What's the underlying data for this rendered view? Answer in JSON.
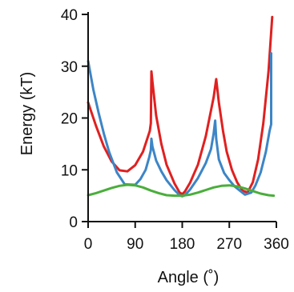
{
  "chart_data": {
    "type": "line",
    "xlabel": "Angle (˚)",
    "ylabel": "Energy (kT)",
    "xlim": [
      0,
      360
    ],
    "ylim": [
      0,
      40
    ],
    "xticks": [
      0,
      90,
      180,
      270,
      360
    ],
    "yticks": [
      0,
      10,
      20,
      30,
      40
    ],
    "grid": false,
    "series": [
      {
        "color": "#e02020",
        "points": [
          [
            0,
            23
          ],
          [
            15,
            18.5
          ],
          [
            30,
            14.5
          ],
          [
            45,
            11.6
          ],
          [
            60,
            9.9
          ],
          [
            75,
            9.7
          ],
          [
            90,
            10.9
          ],
          [
            105,
            13.5
          ],
          [
            118,
            17.5
          ],
          [
            120,
            19
          ],
          [
            121,
            29
          ],
          [
            123,
            27
          ],
          [
            130,
            20.5
          ],
          [
            140,
            15
          ],
          [
            150,
            11
          ],
          [
            165,
            7.4
          ],
          [
            175,
            5.6
          ],
          [
            180,
            5.3
          ],
          [
            185,
            5.8
          ],
          [
            195,
            7.5
          ],
          [
            210,
            11
          ],
          [
            225,
            16.5
          ],
          [
            240,
            24
          ],
          [
            245,
            27.5
          ],
          [
            250,
            23
          ],
          [
            258,
            17.5
          ],
          [
            265,
            13.5
          ],
          [
            275,
            10
          ],
          [
            285,
            7.6
          ],
          [
            295,
            6
          ],
          [
            305,
            5.6
          ],
          [
            315,
            7.6
          ],
          [
            325,
            12
          ],
          [
            335,
            19
          ],
          [
            345,
            29
          ],
          [
            352,
            39.5
          ]
        ]
      },
      {
        "color": "#3d85c6",
        "points": [
          [
            0,
            31
          ],
          [
            10,
            25.5
          ],
          [
            20,
            21
          ],
          [
            30,
            17
          ],
          [
            40,
            13.5
          ],
          [
            55,
            9.5
          ],
          [
            70,
            7.2
          ],
          [
            90,
            7.1
          ],
          [
            100,
            8.2
          ],
          [
            110,
            10
          ],
          [
            117,
            12.5
          ],
          [
            120,
            13.8
          ],
          [
            121,
            16
          ],
          [
            123,
            14.5
          ],
          [
            130,
            11.8
          ],
          [
            140,
            9.7
          ],
          [
            150,
            8
          ],
          [
            165,
            6.1
          ],
          [
            175,
            5.1
          ],
          [
            180,
            4.9
          ],
          [
            185,
            5.1
          ],
          [
            195,
            6.2
          ],
          [
            210,
            8.4
          ],
          [
            225,
            11.3
          ],
          [
            235,
            14
          ],
          [
            240,
            17
          ],
          [
            243,
            19.5
          ],
          [
            245,
            16
          ],
          [
            250,
            12
          ],
          [
            260,
            9.4
          ],
          [
            270,
            8
          ],
          [
            280,
            6.8
          ],
          [
            290,
            6
          ],
          [
            300,
            5.2
          ],
          [
            312,
            5.6
          ],
          [
            320,
            7
          ],
          [
            330,
            9.5
          ],
          [
            340,
            13.5
          ],
          [
            347,
            17.5
          ],
          [
            350,
            18.8
          ],
          [
            350,
            32.5
          ]
        ]
      },
      {
        "color": "#4aae3b",
        "points": [
          [
            0,
            5.1
          ],
          [
            15,
            5.5
          ],
          [
            30,
            6
          ],
          [
            45,
            6.5
          ],
          [
            60,
            6.9
          ],
          [
            75,
            7.1
          ],
          [
            90,
            7
          ],
          [
            105,
            6.6
          ],
          [
            120,
            6
          ],
          [
            135,
            5.5
          ],
          [
            150,
            5.1
          ],
          [
            165,
            5
          ],
          [
            180,
            5
          ],
          [
            195,
            5.2
          ],
          [
            210,
            5.6
          ],
          [
            225,
            6.1
          ],
          [
            240,
            6.6
          ],
          [
            255,
            6.9
          ],
          [
            270,
            7
          ],
          [
            285,
            6.8
          ],
          [
            300,
            6.4
          ],
          [
            315,
            5.9
          ],
          [
            330,
            5.4
          ],
          [
            345,
            5.1
          ],
          [
            355,
            5
          ]
        ]
      }
    ]
  }
}
